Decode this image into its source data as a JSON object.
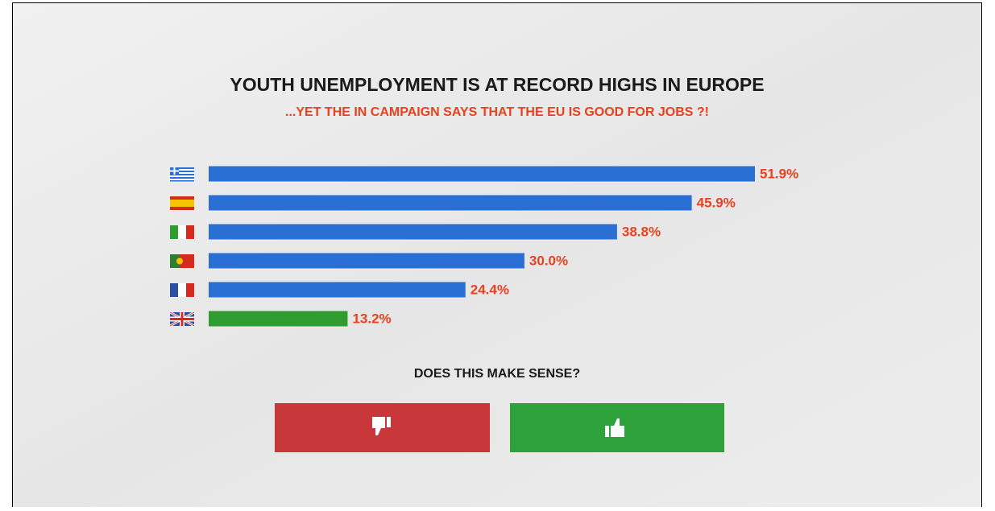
{
  "chart_data": {
    "type": "bar",
    "orientation": "horizontal",
    "title": "YOUTH UNEMPLOYMENT IS AT RECORD HIGHS IN EUROPE",
    "subtitle": "...YET THE IN CAMPAIGN SAYS THAT THE EU IS GOOD FOR JOBS ?!",
    "categories": [
      null,
      null,
      null,
      null,
      null,
      null
    ],
    "values": [
      51.9,
      45.9,
      38.8,
      30.0,
      24.4,
      13.2
    ],
    "value_labels": [
      "51.9%",
      "45.9%",
      "38.8%",
      "30.0%",
      "24.4%",
      "13.2%"
    ],
    "colors": [
      "#2a6fd3",
      "#2a6fd3",
      "#2a6fd3",
      "#2a6fd3",
      "#2a6fd3",
      "#2e9c2e"
    ],
    "label_color": "#e8411e"
  },
  "question": "DOES THIS MAKE SENSE?"
}
